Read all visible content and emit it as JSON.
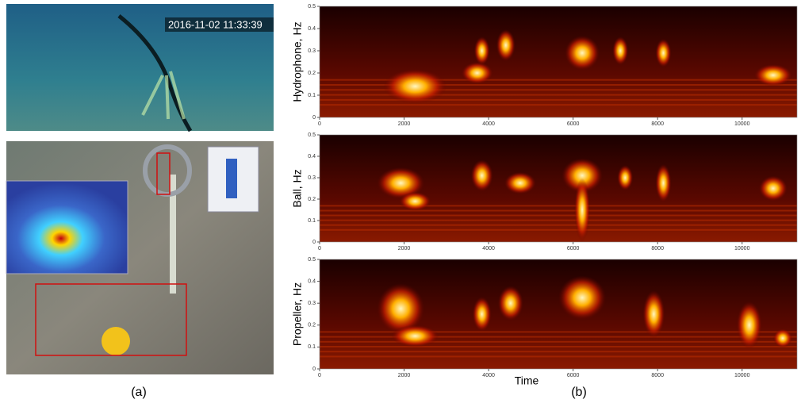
{
  "figure_a": {
    "timestamp": "2016-11-02 11:33:39",
    "label": "(a)"
  },
  "figure_b": {
    "label": "(b)",
    "x_label": "Time",
    "xlim": [
      0,
      11300
    ],
    "xticks": [
      0,
      2000,
      4000,
      6000,
      8000,
      10000
    ],
    "panels": [
      {
        "y_label": "Hydrophone, Hz",
        "ylim": [
          0,
          0.5
        ],
        "yticks": [
          0,
          0.1,
          0.2,
          0.3,
          0.4,
          0.5
        ]
      },
      {
        "y_label": "Ball, Hz",
        "ylim": [
          0,
          0.5
        ],
        "yticks": [
          0,
          0.1,
          0.2,
          0.3,
          0.4,
          0.5
        ]
      },
      {
        "y_label": "Propeller, Hz",
        "ylim": [
          0,
          0.5
        ],
        "yticks": [
          0,
          0.1,
          0.2,
          0.3,
          0.4,
          0.5
        ]
      }
    ]
  }
}
